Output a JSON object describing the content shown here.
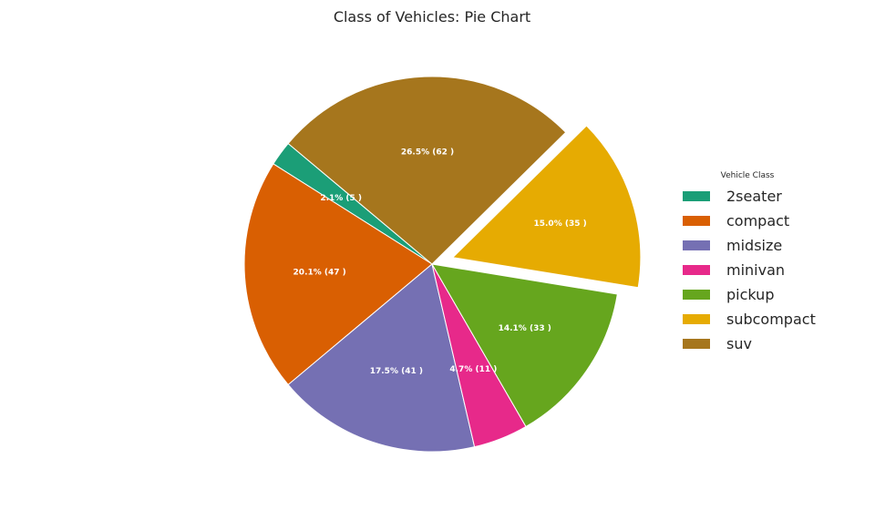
{
  "title": "Class of Vehicles: Pie Chart",
  "legend_title": "Vehicle Class",
  "chart_data": {
    "type": "pie",
    "title": "Class of Vehicles: Pie Chart",
    "legend_title": "Vehicle Class",
    "legend_position": "right",
    "start_angle": 140,
    "direction": "counterclockwise",
    "explode": "subcompact",
    "slices": [
      {
        "label": "2seater",
        "count": 5,
        "percent": 2.1,
        "display": "2.1% (5 )",
        "color": "#1b9e77"
      },
      {
        "label": "compact",
        "count": 47,
        "percent": 20.1,
        "display": "20.1% (47 )",
        "color": "#d95f02"
      },
      {
        "label": "midsize",
        "count": 41,
        "percent": 17.5,
        "display": "17.5% (41 )",
        "color": "#7570b3"
      },
      {
        "label": "minivan",
        "count": 11,
        "percent": 4.7,
        "display": "4.7% (11 )",
        "color": "#e7298a"
      },
      {
        "label": "pickup",
        "count": 33,
        "percent": 14.1,
        "display": "14.1% (33 )",
        "color": "#66a61e"
      },
      {
        "label": "subcompact",
        "count": 35,
        "percent": 15.0,
        "display": "15.0% (35 )",
        "color": "#e6ab02"
      },
      {
        "label": "suv",
        "count": 62,
        "percent": 26.5,
        "display": "26.5% (62 )",
        "color": "#a6761d"
      }
    ]
  }
}
